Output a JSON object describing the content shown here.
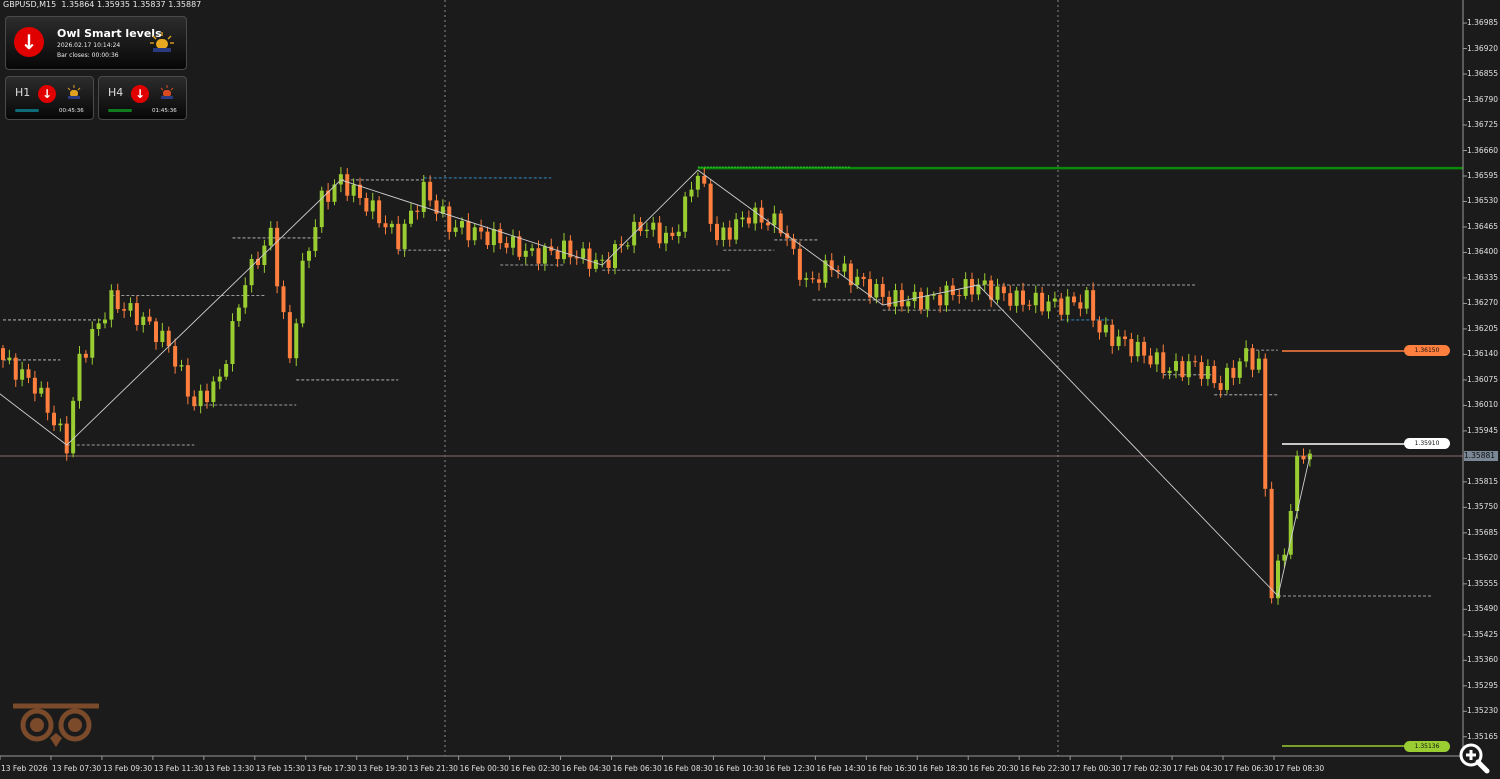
{
  "header": {
    "symbol_line": "GBPUSD,M15  1.35864 1.35935 1.35837 1.35887"
  },
  "indicator": {
    "name": "Owl Smart levels",
    "datetime": "2026.02.17 10:14:24",
    "bar_closes": "Bar closes: 00:00:36",
    "signal": "arrow-down-icon",
    "alarm": "alarm-light-icon",
    "timeframes": [
      {
        "label": "H1",
        "countdown": "00:45:36",
        "bar_color": "#0f6a78",
        "alarm_color": "#e0a020"
      },
      {
        "label": "H4",
        "countdown": "01:45:36",
        "bar_color": "#0f7a1e",
        "alarm_color": "#d84a20"
      }
    ]
  },
  "colors": {
    "background": "#1b1b1b",
    "bull": "#9acd32",
    "bear": "#ff7f3f",
    "resistance": "#0a8a0a",
    "zigzag": "#cfcfcf"
  },
  "price_labels": [
    {
      "value": "1.36150",
      "color": "#ff7f3f"
    },
    {
      "value": "1.35910",
      "color": "#ffffff"
    },
    {
      "value": "1.35136",
      "color": "#9acd32"
    }
  ],
  "current_price": "1.35881",
  "chart_data": {
    "type": "candlestick",
    "title": "GBPUSD,M15",
    "ylim": [
      1.3513,
      1.3705
    ],
    "y_ticks": [
      "1.36985",
      "1.36920",
      "1.36855",
      "1.36790",
      "1.36725",
      "1.36660",
      "1.36595",
      "1.36530",
      "1.36465",
      "1.36400",
      "1.36335",
      "1.36270",
      "1.36205",
      "1.36140",
      "1.36075",
      "1.36010",
      "1.35945",
      "1.35815",
      "1.35750",
      "1.35685",
      "1.35620",
      "1.35555",
      "1.35490",
      "1.35425",
      "1.35360",
      "1.35295",
      "1.35230",
      "1.35165"
    ],
    "x_ticks": [
      "13 Feb 2026",
      "13 Feb 07:30",
      "13 Feb 09:30",
      "13 Feb 11:30",
      "13 Feb 13:30",
      "13 Feb 15:30",
      "13 Feb 17:30",
      "13 Feb 19:30",
      "13 Feb 21:30",
      "16 Feb 00:30",
      "16 Feb 02:30",
      "16 Feb 04:30",
      "16 Feb 06:30",
      "16 Feb 08:30",
      "16 Feb 10:30",
      "16 Feb 12:30",
      "16 Feb 14:30",
      "16 Feb 16:30",
      "16 Feb 18:30",
      "16 Feb 20:30",
      "16 Feb 22:30",
      "17 Feb 00:30",
      "17 Feb 02:30",
      "17 Feb 04:30",
      "17 Feb 06:30",
      "17 Feb 08:30"
    ],
    "close_path": [
      [
        0,
        1.36126
      ],
      [
        5,
        1.36062
      ],
      [
        10,
        1.35909
      ],
      [
        12,
        1.36126
      ],
      [
        17,
        1.36279
      ],
      [
        22,
        1.36228
      ],
      [
        26,
        1.36164
      ],
      [
        30,
        1.36011
      ],
      [
        34,
        1.36075
      ],
      [
        38,
        1.3633
      ],
      [
        42,
        1.36445
      ],
      [
        45,
        1.36126
      ],
      [
        47,
        1.36355
      ],
      [
        50,
        1.36534
      ],
      [
        53,
        1.36585
      ],
      [
        58,
        1.36508
      ],
      [
        62,
        1.36432
      ],
      [
        66,
        1.36559
      ],
      [
        70,
        1.3647
      ],
      [
        78,
        1.36432
      ],
      [
        83,
        1.36394
      ],
      [
        88,
        1.36406
      ],
      [
        94,
        1.36368
      ],
      [
        100,
        1.3647
      ],
      [
        105,
        1.36432
      ],
      [
        109,
        1.3661
      ],
      [
        112,
        1.36432
      ],
      [
        117,
        1.36496
      ],
      [
        122,
        1.3647
      ],
      [
        126,
        1.36317
      ],
      [
        130,
        1.36368
      ],
      [
        134,
        1.3633
      ],
      [
        139,
        1.36279
      ],
      [
        145,
        1.36279
      ],
      [
        153,
        1.36317
      ],
      [
        159,
        1.36279
      ],
      [
        166,
        1.36266
      ],
      [
        170,
        1.36279
      ],
      [
        172,
        1.36202
      ],
      [
        178,
        1.36151
      ],
      [
        183,
        1.361
      ],
      [
        187,
        1.36113
      ],
      [
        191,
        1.36062
      ],
      [
        195,
        1.36139
      ],
      [
        197,
        1.36113
      ],
      [
        198,
        1.35794
      ],
      [
        199,
        1.35539
      ],
      [
        201,
        1.35641
      ],
      [
        203,
        1.35858
      ],
      [
        205,
        1.35887
      ]
    ],
    "zigzag": [
      [
        -1,
        1.36046
      ],
      [
        10,
        1.35909
      ],
      [
        53,
        1.36585
      ],
      [
        94,
        1.36368
      ],
      [
        109,
        1.3661
      ],
      [
        138,
        1.36266
      ],
      [
        153,
        1.36317
      ],
      [
        200,
        1.35524
      ],
      [
        205,
        1.35881
      ]
    ],
    "levels": [
      {
        "price": 1.36228,
        "from": 0,
        "to": 16
      },
      {
        "price": 1.36126,
        "from": 0,
        "to": 9
      },
      {
        "price": 1.35909,
        "from": 10,
        "to": 30
      },
      {
        "price": 1.3629,
        "from": 17,
        "to": 41
      },
      {
        "price": 1.36011,
        "from": 30,
        "to": 46
      },
      {
        "price": 1.36437,
        "from": 36,
        "to": 50
      },
      {
        "price": 1.36075,
        "from": 46,
        "to": 62
      },
      {
        "price": 1.36585,
        "from": 53,
        "to": 66
      },
      {
        "price": 1.36406,
        "from": 62,
        "to": 70
      },
      {
        "price": 1.36368,
        "from": 78,
        "to": 88
      },
      {
        "price": 1.36355,
        "from": 94,
        "to": 114
      },
      {
        "price": 1.36406,
        "from": 113,
        "to": 121
      },
      {
        "price": 1.36432,
        "from": 121,
        "to": 128
      },
      {
        "price": 1.36279,
        "from": 127,
        "to": 138
      },
      {
        "price": 1.36253,
        "from": 138,
        "to": 157
      },
      {
        "price": 1.36317,
        "from": 152,
        "to": 187
      },
      {
        "price": 1.36088,
        "from": 182,
        "to": 190
      },
      {
        "price": 1.36037,
        "from": 190,
        "to": 200
      },
      {
        "price": 1.36151,
        "from": 195,
        "to": 200
      },
      {
        "price": 1.35524,
        "from": 200,
        "to": 224
      }
    ],
    "resistance": 1.36615,
    "blue_levels": [
      {
        "price": 1.3659,
        "from": 66,
        "to": 86
      },
      {
        "price": 1.36228,
        "from": 166,
        "to": 174
      }
    ]
  },
  "zoom_button": "zoom-in-icon"
}
